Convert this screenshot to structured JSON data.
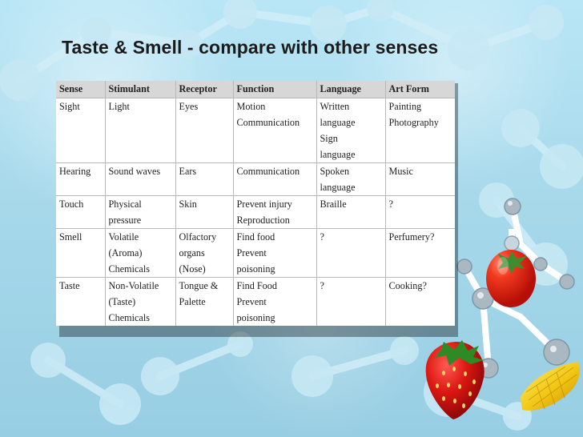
{
  "title": "Taste & Smell - compare with other senses",
  "table": {
    "headers": [
      "Sense",
      "Stimulant",
      "Receptor",
      "Function",
      "Language",
      "Art Form"
    ],
    "rows": [
      [
        [
          "Sight"
        ],
        [
          "Light"
        ],
        [
          "Eyes"
        ],
        [
          "Motion",
          "Communication"
        ],
        [
          "Written",
          "language",
          "Sign",
          "language"
        ],
        [
          "Painting",
          "Photography"
        ]
      ],
      [
        [
          "Hearing"
        ],
        [
          "Sound waves"
        ],
        [
          "Ears"
        ],
        [
          "Communication"
        ],
        [
          "Spoken",
          "language"
        ],
        [
          "Music"
        ]
      ],
      [
        [
          "Touch"
        ],
        [
          "Physical",
          "pressure"
        ],
        [
          "Skin"
        ],
        [
          "Prevent injury",
          "Reproduction"
        ],
        [
          "Braille"
        ],
        [
          "?"
        ]
      ],
      [
        [
          "Smell"
        ],
        [
          "Volatile",
          "(Aroma)",
          "Chemicals"
        ],
        [
          "Olfactory",
          "organs",
          "(Nose)"
        ],
        [
          "Find food",
          "Prevent",
          "poisoning"
        ],
        [
          "?"
        ],
        [
          "Perfumery?"
        ]
      ],
      [
        [
          "Taste"
        ],
        [
          "Non-Volatile",
          "(Taste)",
          "Chemicals"
        ],
        [
          "Tongue &",
          "Palette"
        ],
        [
          "Find Food",
          "Prevent",
          "poisoning"
        ],
        [
          "?"
        ],
        [
          "Cooking?"
        ]
      ]
    ]
  },
  "decor": {
    "background": "molecular-network",
    "icons": [
      "tomato-icon",
      "strawberry-icon",
      "corn-icon"
    ]
  }
}
